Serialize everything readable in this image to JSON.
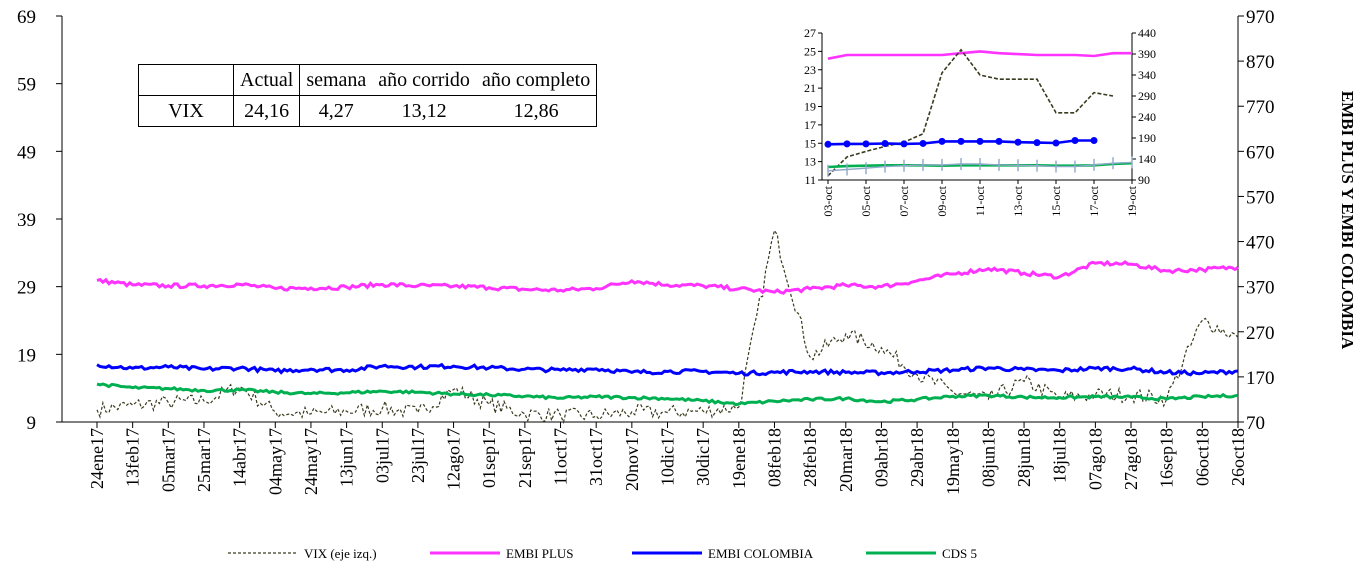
{
  "chart_data": [
    {
      "type": "line",
      "ylim_left": [
        9,
        69
      ],
      "yticks_left": [
        "69",
        "59",
        "49",
        "39",
        "29",
        "19",
        "9"
      ],
      "ylim_right": [
        70,
        970
      ],
      "yticks_right": [
        "970",
        "870",
        "770",
        "670",
        "570",
        "470",
        "370",
        "270",
        "170",
        "70"
      ],
      "ylabel_right": "EMBI PLUS Y EMBI COLOMBIA",
      "categories": [
        "24ene17",
        "13feb17",
        "05mar17",
        "25mar17",
        "14abr17",
        "04may17",
        "24may17",
        "13jun17",
        "03jul17",
        "23jul17",
        "12ago17",
        "01sep17",
        "21sep17",
        "11oct17",
        "31oct17",
        "20nov17",
        "10dic17",
        "30dic17",
        "19ene18",
        "08feb18",
        "28feb18",
        "20mar18",
        "09abr18",
        "29abr18",
        "19may18",
        "08jun18",
        "28jun18",
        "18jul18",
        "07ago18",
        "27ago18",
        "16sep18",
        "06oct18",
        "26oct18"
      ],
      "series": [
        {
          "name": "VIX (eje izq.)",
          "axis": "left",
          "color": "#3a3a1e",
          "dash": true,
          "values": [
            10.8,
            11.5,
            11.9,
            12.1,
            14.2,
            10.5,
            10.2,
            10.6,
            11.0,
            10.4,
            13.8,
            11.6,
            10.2,
            10.0,
            9.9,
            10.5,
            10.4,
            10.6,
            11.2,
            37.3,
            18.6,
            22.0,
            20.0,
            16.0,
            13.5,
            12.4,
            15.0,
            12.6,
            13.0,
            13.0,
            12.4,
            24.0,
            21.5
          ]
        },
        {
          "name": "EMBI PLUS",
          "axis": "right",
          "color": "#ff33ff",
          "dash": false,
          "values": [
            384,
            374,
            372,
            372,
            375,
            366,
            367,
            369,
            375,
            372,
            371,
            368,
            364,
            362,
            366,
            383,
            374,
            372,
            365,
            358,
            365,
            373,
            370,
            383,
            398,
            410,
            400,
            392,
            422,
            420,
            405,
            408,
            413
          ]
        },
        {
          "name": "EMBI COLOMBIA",
          "axis": "right",
          "color": "#0000ff",
          "dash": false,
          "values": [
            197,
            189,
            192,
            187,
            190,
            183,
            187,
            185,
            194,
            192,
            194,
            190,
            187,
            185,
            188,
            180,
            182,
            182,
            178,
            180,
            182,
            180,
            179,
            182,
            185,
            190,
            186,
            184,
            189,
            188,
            180,
            178,
            183
          ]
        },
        {
          "name": "CDS 5",
          "axis": "right",
          "color": "#00b050",
          "dash": false,
          "values": [
            154,
            146,
            144,
            140,
            141,
            136,
            133,
            135,
            138,
            136,
            132,
            130,
            127,
            123,
            126,
            124,
            122,
            117,
            110,
            116,
            120,
            122,
            115,
            120,
            127,
            129,
            125,
            124,
            126,
            125,
            121,
            126,
            129
          ]
        }
      ],
      "legend_placement": "bottom"
    },
    {
      "type": "line",
      "inset": true,
      "ylim_left": [
        11,
        27
      ],
      "yticks_left": [
        "27",
        "25",
        "23",
        "21",
        "19",
        "17",
        "15",
        "13",
        "11"
      ],
      "ylim_right": [
        90,
        440
      ],
      "yticks_right": [
        "440",
        "390",
        "340",
        "290",
        "240",
        "190",
        "140",
        "90"
      ],
      "categories": [
        "03-oct",
        "05-oct",
        "07-oct",
        "09-oct",
        "11-oct",
        "13-oct",
        "15-oct",
        "17-oct",
        "19-oct"
      ],
      "x": [
        0,
        1,
        2,
        3,
        4,
        5,
        6,
        7,
        8,
        9,
        10,
        11,
        12,
        13,
        14,
        15,
        16,
        17,
        18,
        19,
        20,
        21,
        22
      ],
      "series": [
        {
          "name": "EMBI PLUS",
          "axis": "left",
          "color": "#ff33ff",
          "values": [
            24.2,
            24.6,
            24.6,
            24.6,
            24.6,
            24.6,
            24.6,
            24.8,
            25.0,
            24.8,
            24.7,
            24.6,
            24.6,
            24.6,
            24.5,
            24.8,
            24.8,
            null,
            null,
            null,
            null,
            null,
            null
          ]
        },
        {
          "name": "VIX (eje izq.)",
          "axis": "right",
          "color": "#3a3a1e",
          "dash": true,
          "values": [
            100,
            145,
            158,
            170,
            180,
            200,
            345,
            400,
            340,
            330,
            330,
            330,
            250,
            250,
            298,
            290,
            null,
            null,
            null,
            null,
            null,
            null,
            null
          ]
        },
        {
          "name": "EMBI COLOMBIA",
          "axis": "right",
          "color": "#0000ff",
          "markers": true,
          "values": [
            175,
            176,
            176,
            177,
            176,
            177,
            182,
            182,
            182,
            182,
            180,
            179,
            178,
            184,
            184,
            null,
            null,
            null,
            null,
            null,
            null,
            null,
            null
          ]
        },
        {
          "name": "CDS 5",
          "axis": "right",
          "color": "#00b050",
          "values": [
            121,
            123,
            124,
            125,
            125,
            125,
            124,
            125,
            125,
            125,
            125,
            125,
            124,
            124,
            125,
            128,
            130,
            null,
            null,
            null,
            null,
            null,
            null
          ]
        },
        {
          "name": "markers",
          "axis": "right",
          "color": "#8fa9c9",
          "values": [
            112,
            115,
            118,
            122,
            124,
            126,
            126,
            128,
            128,
            126,
            125,
            124,
            122,
            122,
            126,
            130,
            132,
            null,
            null,
            null,
            null,
            null,
            null
          ]
        }
      ]
    }
  ],
  "table": {
    "headers": [
      "",
      "Actual",
      "semana",
      "año corrido",
      "año completo"
    ],
    "rows": [
      [
        "VIX",
        "24,16",
        "4,27",
        "13,12",
        "12,86"
      ]
    ]
  },
  "legend": [
    {
      "label": "VIX (eje izq.)"
    },
    {
      "label": "EMBI PLUS"
    },
    {
      "label": "EMBI COLOMBIA"
    },
    {
      "label": "CDS 5"
    }
  ],
  "colors": {
    "vix": "#3a3a1e",
    "embi_plus": "#ff33ff",
    "embi_col": "#0000ff",
    "cds": "#00b050",
    "inset_marker": "#8fa9c9"
  }
}
